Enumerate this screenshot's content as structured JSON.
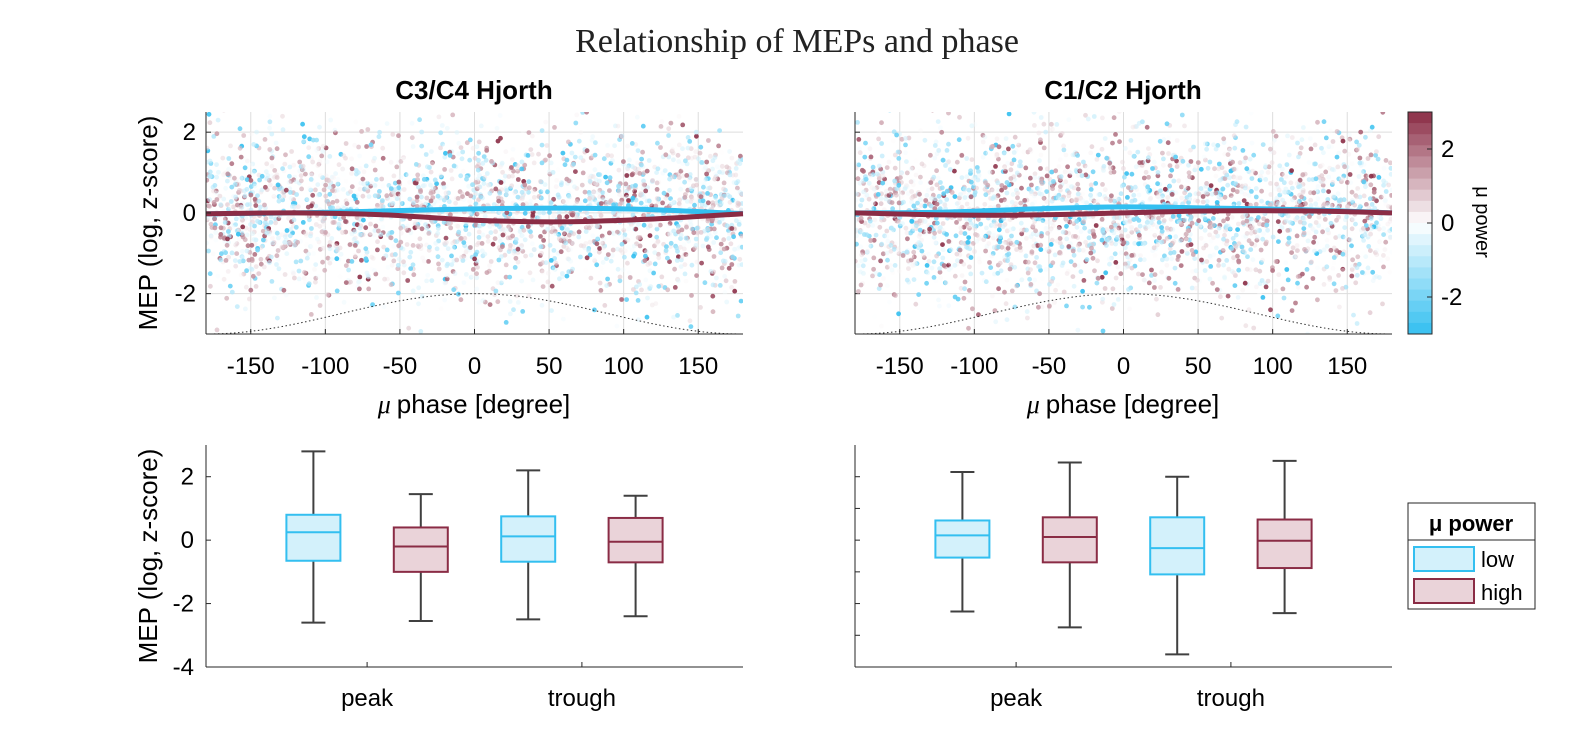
{
  "figure": {
    "title": "Relationship of MEPs and phase"
  },
  "colors": {
    "low": "#33bff0",
    "low_fill": "#d3f1fb",
    "high": "#8a2c45",
    "high_fill": "#ead3d9",
    "whisker": "#404040",
    "grid": "#dddddd"
  },
  "chart_data": [
    {
      "type": "scatter",
      "title": "C3/C4 Hjorth",
      "xlabel_symbol": "μ",
      "xlabel": "phase [degree]",
      "ylabel": "MEP (log, z-score)",
      "xlim": [
        -180,
        180
      ],
      "ylim": [
        -3,
        2.5
      ],
      "xticks": [
        "-150",
        "-100",
        "-50",
        "0",
        "50",
        "100",
        "150"
      ],
      "yticks": [
        "2",
        "0",
        "-2"
      ],
      "grid": true,
      "points_note": "dense cloud of MEP values colored by μ power",
      "series": [
        {
          "name": "low",
          "x": [
            -180,
            -120,
            -60,
            0,
            60,
            120,
            180
          ],
          "y": [
            -0.02,
            0.0,
            0.05,
            0.1,
            0.12,
            0.08,
            -0.02
          ]
        },
        {
          "name": "high",
          "x": [
            -180,
            -120,
            -60,
            0,
            60,
            120,
            180
          ],
          "y": [
            -0.02,
            0.0,
            -0.05,
            -0.18,
            -0.22,
            -0.15,
            -0.02
          ]
        }
      ],
      "phase_reference": {
        "x": [
          -180,
          -90,
          0,
          90,
          180
        ],
        "y": [
          -3,
          -2.5,
          -2,
          -2.5,
          -3
        ]
      }
    },
    {
      "type": "scatter",
      "title": "C1/C2 Hjorth",
      "xlabel_symbol": "μ",
      "xlabel": "phase [degree]",
      "ylabel": "",
      "xlim": [
        -180,
        180
      ],
      "ylim": [
        -3,
        2.5
      ],
      "xticks": [
        "-150",
        "-100",
        "-50",
        "0",
        "50",
        "100",
        "150"
      ],
      "yticks": [],
      "grid": true,
      "series": [
        {
          "name": "low",
          "x": [
            -180,
            -120,
            -60,
            0,
            60,
            120,
            180
          ],
          "y": [
            0.0,
            0.02,
            0.1,
            0.15,
            0.12,
            0.08,
            0.0
          ]
        },
        {
          "name": "high",
          "x": [
            -180,
            -120,
            -60,
            0,
            60,
            120,
            180
          ],
          "y": [
            0.0,
            -0.05,
            -0.05,
            0.0,
            0.05,
            0.05,
            0.0
          ]
        }
      ],
      "phase_reference": {
        "x": [
          -180,
          -90,
          0,
          90,
          180
        ],
        "y": [
          -3,
          -2.5,
          -2,
          -2.5,
          -3
        ]
      }
    },
    {
      "type": "box",
      "ylabel": "MEP (log, z-score)",
      "ylim": [
        -4,
        3
      ],
      "yticks": [
        "2",
        "0",
        "-2",
        "-4"
      ],
      "categories": [
        "peak",
        "trough"
      ],
      "boxes": [
        {
          "category": "peak",
          "group": "low",
          "whisker_low": -2.6,
          "q1": -0.65,
          "median": 0.25,
          "q3": 0.8,
          "whisker_high": 2.8
        },
        {
          "category": "peak",
          "group": "high",
          "whisker_low": -2.55,
          "q1": -1.0,
          "median": -0.2,
          "q3": 0.4,
          "whisker_high": 1.45
        },
        {
          "category": "trough",
          "group": "low",
          "whisker_low": -2.5,
          "q1": -0.68,
          "median": 0.12,
          "q3": 0.75,
          "whisker_high": 2.2
        },
        {
          "category": "trough",
          "group": "high",
          "whisker_low": -2.4,
          "q1": -0.7,
          "median": -0.05,
          "q3": 0.7,
          "whisker_high": 1.4
        }
      ]
    },
    {
      "type": "box",
      "ylabel": "",
      "ylim": [
        -4,
        3
      ],
      "yticks": [],
      "categories": [
        "peak",
        "trough"
      ],
      "boxes": [
        {
          "category": "peak",
          "group": "low",
          "whisker_low": -2.25,
          "q1": -0.55,
          "median": 0.15,
          "q3": 0.62,
          "whisker_high": 2.15
        },
        {
          "category": "peak",
          "group": "high",
          "whisker_low": -2.75,
          "q1": -0.7,
          "median": 0.1,
          "q3": 0.72,
          "whisker_high": 2.45
        },
        {
          "category": "trough",
          "group": "low",
          "whisker_low": -3.6,
          "q1": -1.08,
          "median": -0.25,
          "q3": 0.72,
          "whisker_high": 2.0
        },
        {
          "category": "trough",
          "group": "high",
          "whisker_low": -2.3,
          "q1": -0.88,
          "median": -0.02,
          "q3": 0.65,
          "whisker_high": 2.5
        }
      ]
    }
  ],
  "colorbar": {
    "label": "μ power",
    "range": [
      -3,
      3
    ],
    "ticks": [
      "2",
      "0",
      "-2"
    ]
  },
  "legend": {
    "title": "μ power",
    "items": [
      {
        "label": "low",
        "group": "low"
      },
      {
        "label": "high",
        "group": "high"
      }
    ]
  }
}
